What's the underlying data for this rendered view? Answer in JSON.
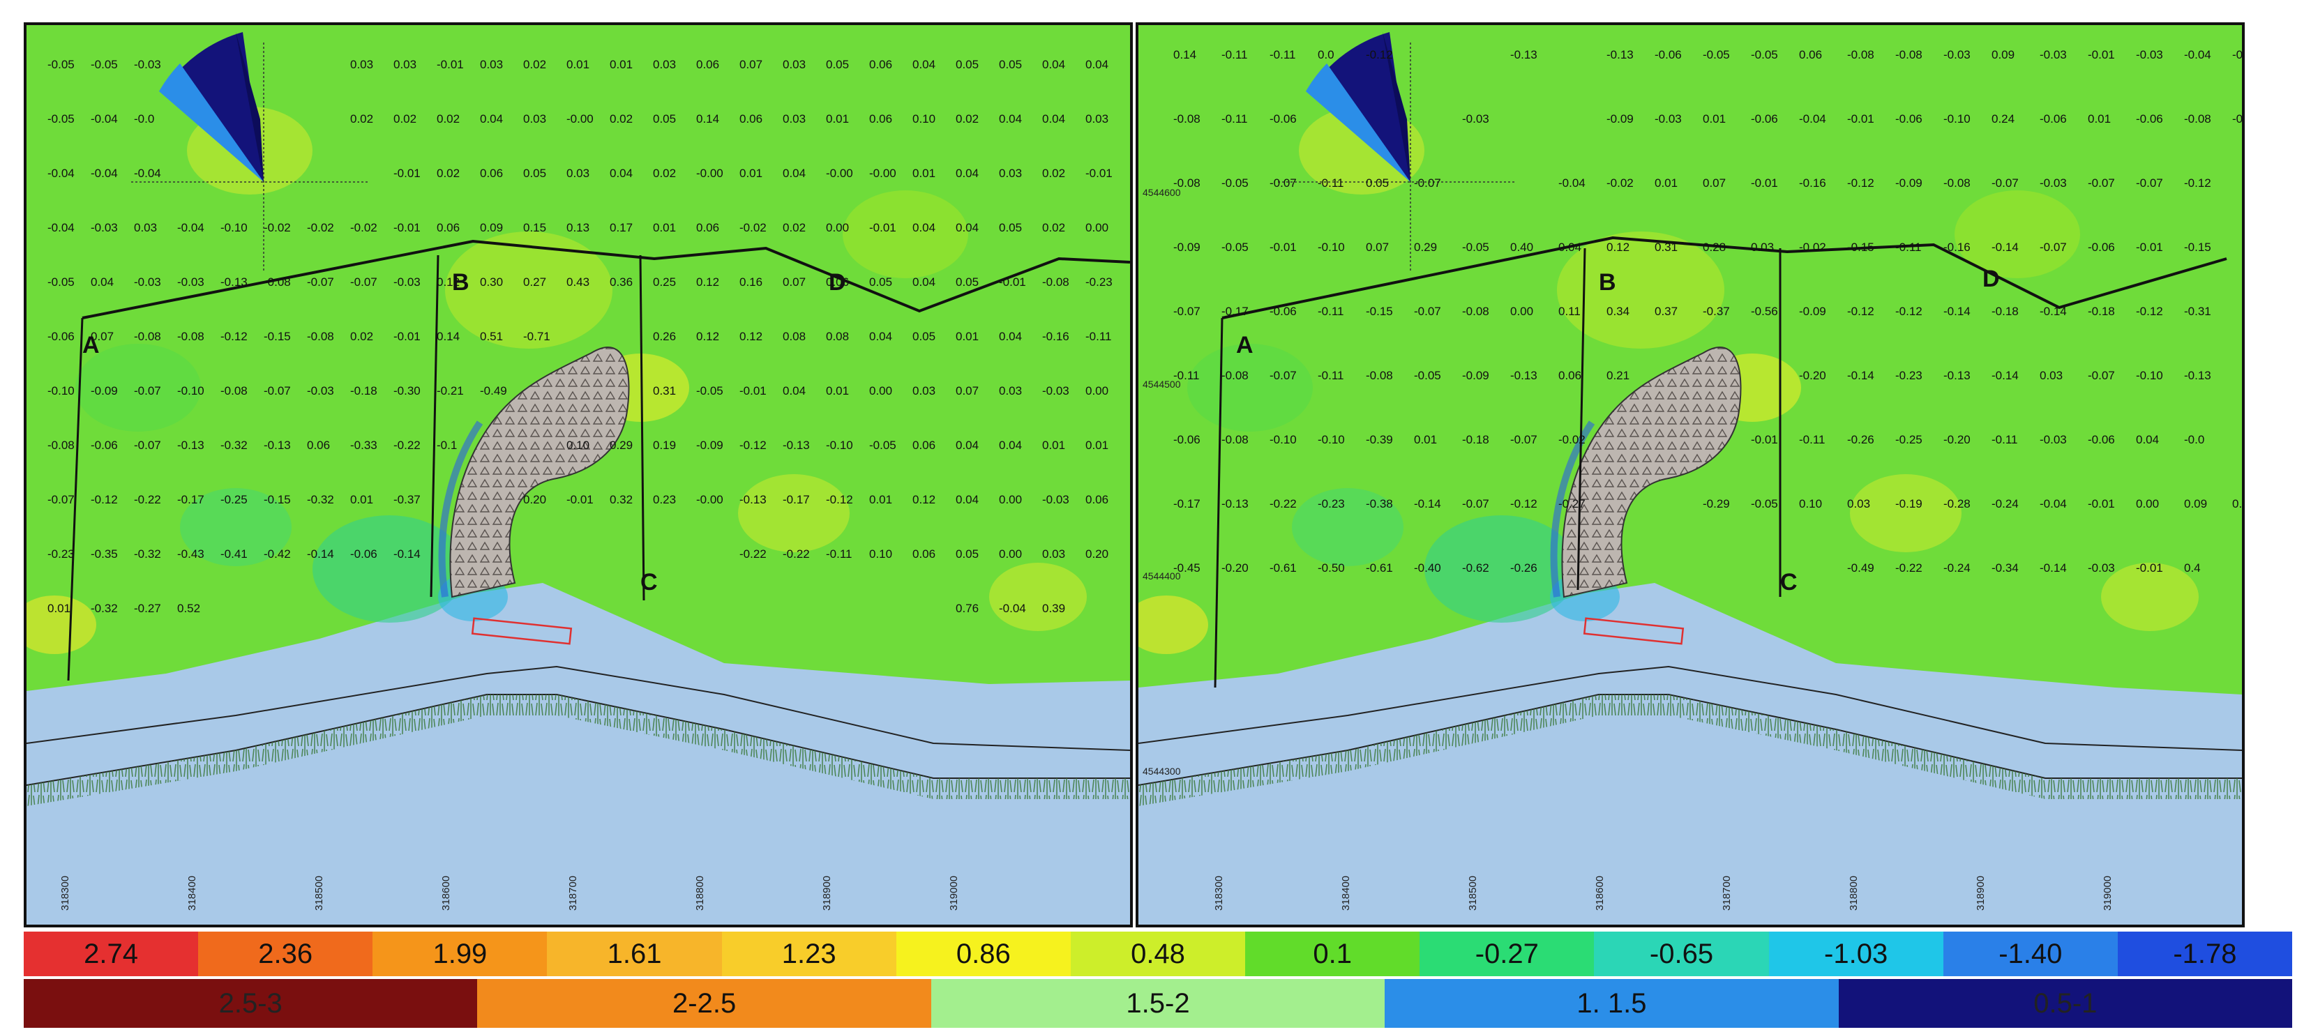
{
  "panels": [
    {
      "id": "left",
      "profile_labels": [
        "A",
        "B",
        "C",
        "D"
      ],
      "easting_ticks": [
        "318300",
        "318400",
        "318500",
        "318600",
        "318700",
        "318800",
        "318900",
        "319000"
      ],
      "northing_ticks": [],
      "value_grid": [
        [
          "-0.05",
          "-0.05",
          "-0.03",
          "",
          "",
          "",
          "",
          "0.03",
          "0.03",
          "-0.01",
          "0.03",
          "0.02",
          "0.01",
          "0.01",
          "0.03",
          "0.06",
          "0.07",
          "0.03",
          "0.05",
          "0.06",
          "0.04",
          "0.05",
          "0.05",
          "0.04",
          "0.04"
        ],
        [
          "-0.05",
          "-0.04",
          "-0.0",
          "",
          "",
          "",
          "",
          "0.02",
          "0.02",
          "0.02",
          "0.04",
          "0.03",
          "-0.00",
          "0.02",
          "0.05",
          "0.14",
          "0.06",
          "0.03",
          "0.01",
          "0.06",
          "0.10",
          "0.02",
          "0.04",
          "0.04",
          "0.03"
        ],
        [
          "-0.04",
          "-0.04",
          "-0.04",
          "",
          "",
          "",
          "",
          "",
          "-0.01",
          "0.02",
          "0.06",
          "0.05",
          "0.03",
          "0.04",
          "0.02",
          "-0.00",
          "0.01",
          "0.04",
          "-0.00",
          "-0.00",
          "0.01",
          "0.04",
          "0.03",
          "0.02",
          "-0.01"
        ],
        [
          "-0.04",
          "-0.03",
          "0.03",
          "-0.04",
          "-0.10",
          "-0.02",
          "-0.02",
          "-0.02",
          "-0.01",
          "0.06",
          "0.09",
          "0.15",
          "0.13",
          "0.17",
          "0.01",
          "0.06",
          "-0.02",
          "0.02",
          "0.00",
          "-0.01",
          "0.04",
          "0.04",
          "0.05",
          "0.02",
          "0.00"
        ],
        [
          "-0.05",
          "0.04",
          "-0.03",
          "-0.03",
          "-0.13",
          "-0.08",
          "-0.07",
          "-0.07",
          "-0.03",
          "0.12",
          "0.30",
          "0.27",
          "0.43",
          "0.36",
          "0.25",
          "0.12",
          "0.16",
          "0.07",
          "0.06",
          "0.05",
          "0.04",
          "0.05",
          "-0.01",
          "-0.08",
          "-0.23"
        ],
        [
          "-0.06",
          "0.07",
          "-0.08",
          "-0.08",
          "-0.12",
          "-0.15",
          "-0.08",
          "0.02",
          "-0.01",
          "0.14",
          "0.51",
          "-0.71",
          "",
          "",
          "0.26",
          "0.12",
          "0.12",
          "0.08",
          "0.08",
          "0.04",
          "0.05",
          "0.01",
          "0.04",
          "-0.16",
          "-0.11"
        ],
        [
          "-0.10",
          "-0.09",
          "-0.07",
          "-0.10",
          "-0.08",
          "-0.07",
          "-0.03",
          "-0.18",
          "-0.30",
          "-0.21",
          "-0.49",
          "",
          "",
          "",
          "0.31",
          "-0.05",
          "-0.01",
          "0.04",
          "0.01",
          "0.00",
          "0.03",
          "0.07",
          "0.03",
          "-0.03",
          "0.00"
        ],
        [
          "-0.08",
          "-0.06",
          "-0.07",
          "-0.13",
          "-0.32",
          "-0.13",
          "0.06",
          "-0.33",
          "-0.22",
          "-0.1",
          "",
          "",
          "0.10",
          "0.29",
          "0.19",
          "-0.09",
          "-0.12",
          "-0.13",
          "-0.10",
          "-0.05",
          "0.06",
          "0.04",
          "0.04",
          "0.01",
          "0.01"
        ],
        [
          "-0.07",
          "-0.12",
          "-0.22",
          "-0.17",
          "-0.25",
          "-0.15",
          "-0.32",
          "0.01",
          "-0.37",
          "",
          "",
          "0.20",
          "-0.01",
          "0.32",
          "0.23",
          "-0.00",
          "-0.13",
          "-0.17",
          "-0.12",
          "0.01",
          "0.12",
          "0.04",
          "0.00",
          "-0.03",
          "0.06"
        ],
        [
          "-0.23",
          "-0.35",
          "-0.32",
          "-0.43",
          "-0.41",
          "-0.42",
          "-0.14",
          "-0.06",
          "-0.14",
          "",
          "",
          "",
          "",
          "",
          "",
          "",
          "-0.22",
          "-0.22",
          "-0.11",
          "0.10",
          "0.06",
          "0.05",
          "0.00",
          "0.03",
          "0.20"
        ],
        [
          "0.01",
          "-0.32",
          "-0.27",
          "0.52",
          "",
          "",
          "",
          "",
          "",
          "",
          "",
          "",
          "",
          "",
          "",
          "",
          "",
          "",
          "",
          "",
          "",
          "0.76",
          "-0.04",
          "0.39",
          ""
        ]
      ]
    },
    {
      "id": "right",
      "profile_labels": [
        "A",
        "B",
        "C",
        "D"
      ],
      "easting_ticks": [
        "318300",
        "318400",
        "318500",
        "318600",
        "318700",
        "318800",
        "318900",
        "319000"
      ],
      "northing_ticks": [
        "4544600",
        "4544500",
        "4544400",
        "4544300"
      ],
      "value_grid": [
        [
          "0.14",
          "-0.11",
          "-0.11",
          "0.0",
          "-0.12",
          "",
          "",
          "-0.13",
          "",
          "-0.13",
          "-0.06",
          "-0.05",
          "-0.05",
          "0.06",
          "-0.08",
          "-0.08",
          "-0.03",
          "0.09",
          "-0.03",
          "-0.01",
          "-0.03",
          "-0.04",
          "-0.05"
        ],
        [
          "-0.08",
          "-0.11",
          "-0.06",
          "",
          "",
          "",
          "-0.03",
          "",
          "",
          "-0.09",
          "-0.03",
          "0.01",
          "-0.06",
          "-0.04",
          "-0.01",
          "-0.06",
          "-0.10",
          "0.24",
          "-0.06",
          "0.01",
          "-0.06",
          "-0.08",
          "-0.08"
        ],
        [
          "-0.08",
          "-0.05",
          "-0.07",
          "-0.11",
          "0.05",
          "-0.07",
          "",
          "",
          "-0.04",
          "-0.02",
          "0.01",
          "0.07",
          "-0.01",
          "-0.16",
          "-0.12",
          "-0.09",
          "-0.08",
          "-0.07",
          "-0.03",
          "-0.07",
          "-0.07",
          "-0.12",
          ""
        ],
        [
          "-0.09",
          "-0.05",
          "-0.01",
          "-0.10",
          "0.07",
          "0.29",
          "-0.05",
          "0.40",
          "0.04",
          "0.12",
          "0.31",
          "0.28",
          "0.03",
          "-0.02",
          "-0.15",
          "-0.11",
          "-0.16",
          "-0.14",
          "-0.07",
          "-0.06",
          "-0.01",
          "-0.15",
          ""
        ],
        [
          "-0.07",
          "-0.17",
          "-0.06",
          "-0.11",
          "-0.15",
          "-0.07",
          "-0.08",
          "0.00",
          "0.11",
          "0.34",
          "0.37",
          "-0.37",
          "-0.56",
          "-0.09",
          "-0.12",
          "-0.12",
          "-0.14",
          "-0.18",
          "-0.14",
          "-0.18",
          "-0.12",
          "-0.31",
          ""
        ],
        [
          "-0.11",
          "-0.08",
          "-0.07",
          "-0.11",
          "-0.08",
          "-0.05",
          "-0.09",
          "-0.13",
          "0.06",
          "0.21",
          "",
          "",
          "",
          "-0.20",
          "-0.14",
          "-0.23",
          "-0.13",
          "-0.14",
          "0.03",
          "-0.07",
          "-0.10",
          "-0.13",
          ""
        ],
        [
          "-0.06",
          "-0.08",
          "-0.10",
          "-0.10",
          "-0.39",
          "0.01",
          "-0.18",
          "-0.07",
          "-0.02",
          "",
          "",
          "",
          "-0.01",
          "-0.11",
          "-0.26",
          "-0.25",
          "-0.20",
          "-0.11",
          "-0.03",
          "-0.06",
          "0.04",
          "-0.0",
          ""
        ],
        [
          "-0.17",
          "-0.13",
          "-0.22",
          "-0.23",
          "-0.38",
          "-0.14",
          "-0.07",
          "-0.12",
          "-0.27",
          "",
          "",
          "-0.29",
          "-0.05",
          "0.10",
          "0.03",
          "-0.19",
          "-0.28",
          "-0.24",
          "-0.04",
          "-0.01",
          "0.00",
          "0.09",
          "0.2"
        ],
        [
          "-0.45",
          "-0.20",
          "-0.61",
          "-0.50",
          "-0.61",
          "-0.40",
          "-0.62",
          "-0.26",
          "",
          "",
          "",
          "",
          "",
          "",
          "-0.49",
          "-0.22",
          "-0.24",
          "-0.34",
          "-0.14",
          "-0.03",
          "-0.01",
          "0.4",
          ""
        ]
      ]
    }
  ],
  "legend_change": {
    "values": [
      "2.74",
      "2.36",
      "1.99",
      "1.61",
      "1.23",
      "0.86",
      "0.48",
      "0.1",
      "-0.27",
      "-0.65",
      "-1.03",
      "-1.40",
      "-1.78"
    ],
    "colors": [
      "#e53030",
      "#f06a1c",
      "#f5951a",
      "#f7b52a",
      "#f8cd2a",
      "#f6f21e",
      "#cdee2a",
      "#61dc2a",
      "#2bdc74",
      "#2bd6b6",
      "#1fc6e8",
      "#2a80e8",
      "#1f4ee0"
    ]
  },
  "legend_wave": {
    "labels": [
      "2.5-3",
      "2-2.5",
      "1.5-2",
      "1. 1.5",
      "0.5-1"
    ],
    "colors": [
      "#7a0f0f",
      "#f28a1c",
      "#a3ef8e",
      "#2b8ee8",
      "#12127a"
    ]
  }
}
